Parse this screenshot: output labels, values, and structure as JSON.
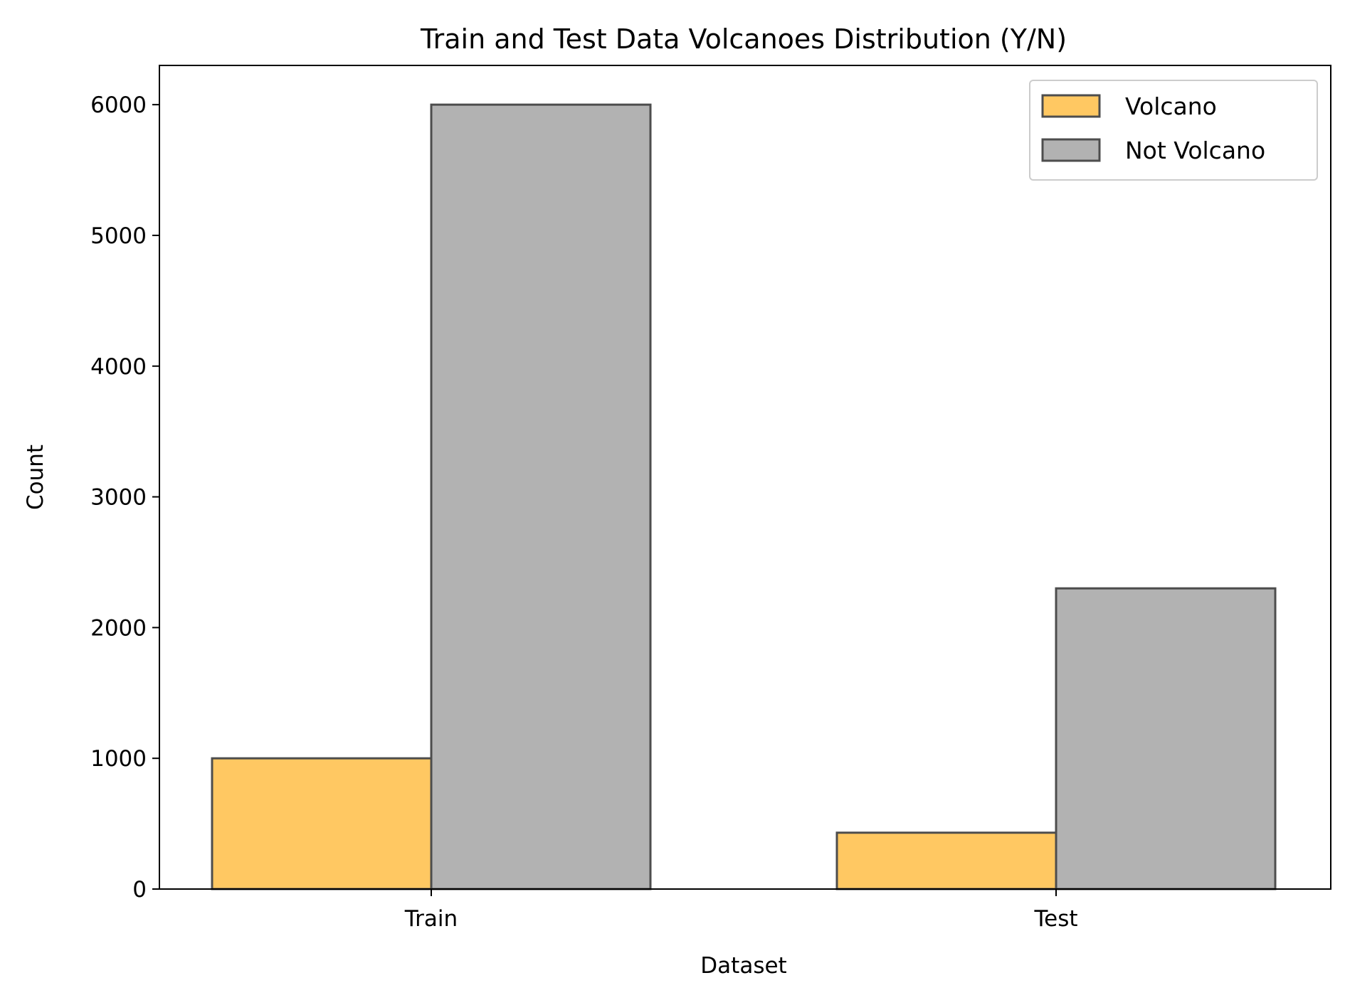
{
  "chart_data": {
    "type": "bar",
    "title": "Train and Test Data Volcanoes Distribution (Y/N)",
    "xlabel": "Dataset",
    "ylabel": "Count",
    "categories": [
      "Train",
      "Test"
    ],
    "series": [
      {
        "name": "Volcano",
        "values": [
          1000,
          431
        ],
        "color": "#ffc862"
      },
      {
        "name": "Not Volcano",
        "values": [
          6000,
          2300
        ],
        "color": "#b2b2b2"
      }
    ],
    "ylim": [
      0,
      6300
    ],
    "yticks": [
      0,
      1000,
      2000,
      3000,
      4000,
      5000,
      6000
    ],
    "grid": false,
    "legend_position": "top-right",
    "edge_color": "#4d4d4d"
  }
}
